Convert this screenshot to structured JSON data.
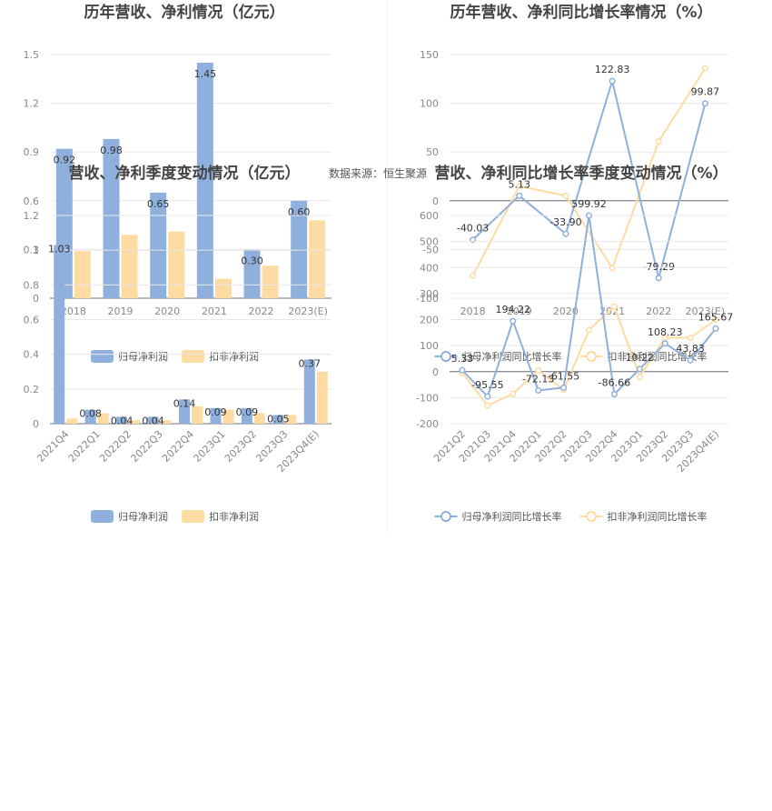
{
  "source_note": "数据来源：恒生聚源",
  "chart_data": [
    {
      "type": "bar",
      "title": "历年营收、净利情况（亿元）",
      "categories": [
        "2018",
        "2019",
        "2020",
        "2021",
        "2022",
        "2023(E)"
      ],
      "ylim": [
        0,
        1.5
      ],
      "yticks": [
        "0",
        "0.3",
        "0.6",
        "0.9",
        "1.2",
        "1.5"
      ],
      "legend_position": "bottom",
      "series": [
        {
          "name": "归母净利润",
          "values": [
            0.92,
            0.98,
            0.65,
            1.45,
            0.3,
            0.6
          ],
          "labels": [
            "0.92",
            "0.98",
            "0.65",
            "1.45",
            "0.30",
            "0.60"
          ],
          "color": "#8fb0dc"
        },
        {
          "name": "扣非净利润",
          "values": [
            0.29,
            0.39,
            0.41,
            0.12,
            0.2,
            0.48
          ],
          "color": "#fddba3"
        }
      ]
    },
    {
      "type": "line",
      "title": "历年营收、净利同比增长率情况（%）",
      "categories": [
        "2018",
        "2019",
        "2020",
        "2021",
        "2022",
        "2023(E)"
      ],
      "ylim": [
        -100,
        150
      ],
      "yticks": [
        "-100",
        "-50",
        "0",
        "50",
        "100",
        "150"
      ],
      "legend_position": "bottom",
      "series": [
        {
          "name": "归母净利润同比增长率",
          "values": [
            -40.03,
            5.13,
            -33.9,
            122.83,
            -79.29,
            99.87
          ],
          "labels": [
            "-40.03",
            "5.13",
            "-33.90",
            "122.83",
            "-79.29",
            "99.87"
          ],
          "color": "#8fb0dc"
        },
        {
          "name": "扣非净利润同比增长率",
          "values": [
            -77,
            15,
            5,
            -69,
            61,
            136
          ],
          "color": "#fddba3"
        }
      ]
    },
    {
      "type": "bar",
      "title": "营收、净利季度变动情况（亿元）",
      "categories": [
        "2021Q4",
        "2022Q1",
        "2022Q2",
        "2022Q3",
        "2022Q4",
        "2023Q1",
        "2023Q2",
        "2023Q3",
        "2023Q4(E)"
      ],
      "ylim": [
        0,
        1.2
      ],
      "yticks": [
        "0",
        "0.2",
        "0.4",
        "0.6",
        "0.8",
        "1",
        "1.2"
      ],
      "legend_position": "bottom",
      "series": [
        {
          "name": "归母净利润",
          "values": [
            1.03,
            0.08,
            0.04,
            0.04,
            0.14,
            0.09,
            0.09,
            0.05,
            0.37
          ],
          "labels": [
            "1.03",
            "0.08",
            "0.04",
            "0.04",
            "0.14",
            "0.09",
            "0.09",
            "0.05",
            "0.37"
          ],
          "color": "#8fb0dc"
        },
        {
          "name": "扣非净利润",
          "values": [
            0.03,
            0.06,
            0.02,
            0.02,
            0.1,
            0.08,
            0.06,
            0.05,
            0.3
          ],
          "color": "#fddba3"
        }
      ]
    },
    {
      "type": "line",
      "title": "营收、净利同比增长率季度变动情况（%）",
      "categories": [
        "2021Q2",
        "2021Q3",
        "2021Q4",
        "2022Q1",
        "2022Q2",
        "2022Q3",
        "2022Q4",
        "2023Q1",
        "2023Q2",
        "2023Q3",
        "2023Q4(E)"
      ],
      "ylim": [
        -200,
        600
      ],
      "yticks": [
        "-200",
        "-100",
        "0",
        "100",
        "200",
        "300",
        "400",
        "500",
        "600"
      ],
      "legend_position": "bottom",
      "series": [
        {
          "name": "归母净利润同比增长率",
          "values": [
            5.33,
            -95.55,
            194.22,
            -72.13,
            -61.55,
            599.92,
            -86.66,
            10.22,
            108.23,
            43.83,
            165.67
          ],
          "labels": [
            "5.33",
            "-95.55",
            "194.22",
            "-72.13",
            "-61.55",
            "599.92",
            "-86.66",
            "10.22",
            "108.23",
            "43.83",
            "165.67"
          ],
          "color": "#8fb0dc"
        },
        {
          "name": "扣非净利润同比增长率",
          "values": [
            -5,
            -130,
            -85,
            5,
            -70,
            160,
            250,
            -20,
            130,
            130,
            200
          ],
          "color": "#fddba3"
        }
      ]
    }
  ]
}
